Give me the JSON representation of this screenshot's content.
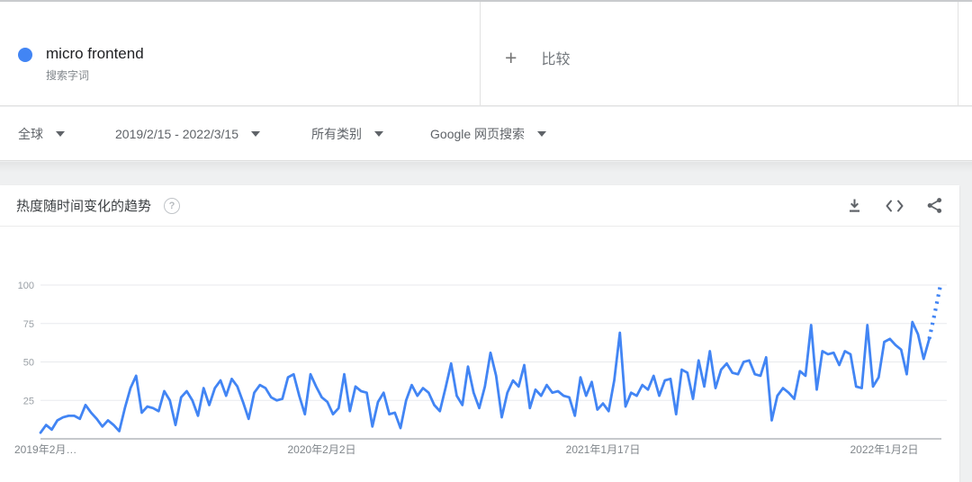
{
  "term_card": {
    "term": "micro frontend",
    "type_label": "搜索字词",
    "dot_color": "#4285f4"
  },
  "compare_card": {
    "plus_glyph": "+",
    "label": "比较"
  },
  "filters": [
    {
      "label": "全球"
    },
    {
      "label": "2019/2/15 - 2022/3/15"
    },
    {
      "label": "所有类别"
    },
    {
      "label": "Google 网页搜索"
    }
  ],
  "trend_section": {
    "title": "热度随时间变化的趋势",
    "help_glyph": "?",
    "action_icons": [
      "download-icon",
      "embed-code-icon",
      "share-icon"
    ]
  },
  "chart_data": {
    "type": "line",
    "title": "热度随时间变化的趋势",
    "x_unit": "week",
    "ylim": [
      0,
      100
    ],
    "yticks": [
      25,
      50,
      75,
      100
    ],
    "grid": true,
    "legend": false,
    "xticks": [
      {
        "week": 0,
        "label": "2019年2月…"
      },
      {
        "week": 50,
        "label": "2020年2月2日"
      },
      {
        "week": 100,
        "label": "2021年1月17日"
      },
      {
        "week": 150,
        "label": "2022年1月2日"
      }
    ],
    "dotted_tail_points": 3,
    "series": [
      {
        "name": "micro frontend",
        "color": "#4285f4",
        "values": [
          4,
          9,
          6,
          12,
          14,
          15,
          15,
          13,
          22,
          17,
          13,
          8,
          12,
          9,
          5,
          20,
          33,
          41,
          17,
          21,
          20,
          18,
          31,
          25,
          9,
          27,
          31,
          25,
          15,
          33,
          22,
          33,
          38,
          28,
          39,
          34,
          24,
          13,
          30,
          35,
          33,
          27,
          25,
          26,
          40,
          42,
          28,
          16,
          42,
          34,
          27,
          24,
          16,
          20,
          42,
          18,
          34,
          31,
          30,
          8,
          24,
          30,
          16,
          17,
          7,
          25,
          35,
          28,
          33,
          30,
          22,
          18,
          33,
          49,
          28,
          22,
          47,
          30,
          20,
          34,
          56,
          41,
          14,
          30,
          38,
          34,
          48,
          20,
          32,
          28,
          35,
          30,
          31,
          28,
          27,
          15,
          40,
          28,
          37,
          19,
          23,
          18,
          38,
          69,
          21,
          30,
          28,
          35,
          32,
          41,
          28,
          38,
          39,
          16,
          45,
          43,
          26,
          51,
          34,
          57,
          33,
          45,
          49,
          43,
          42,
          50,
          51,
          42,
          41,
          53,
          12,
          28,
          33,
          30,
          26,
          44,
          41,
          74,
          32,
          57,
          55,
          56,
          48,
          57,
          55,
          34,
          33,
          74,
          34,
          40,
          63,
          65,
          61,
          58,
          42,
          76,
          68,
          52,
          65,
          82,
          100
        ]
      }
    ]
  }
}
